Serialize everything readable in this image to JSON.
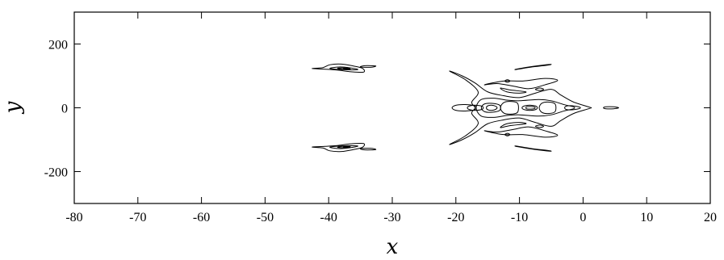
{
  "chart_data": {
    "type": "contour",
    "title": "",
    "xlabel": "x",
    "ylabel": "y",
    "xlim": [
      -80,
      20
    ],
    "ylim": [
      -300,
      300
    ],
    "x_ticks": [
      -80,
      -70,
      -60,
      -50,
      -40,
      -30,
      -20,
      -10,
      0,
      10,
      20
    ],
    "x_tick_labels": [
      "-80",
      "-70",
      "-60",
      "-50",
      "-40",
      "-30",
      "-20",
      "-10",
      "0",
      "10",
      "20"
    ],
    "y_ticks": [
      -200,
      0,
      200
    ],
    "y_tick_labels": [
      "-200",
      "0",
      "200"
    ],
    "grid": false,
    "line_color": "#000000",
    "features": [
      {
        "name": "upper-side-lobe",
        "contours": [
          [
            [
              -40.9,
              126
            ],
            [
              -39.8,
              135
            ],
            [
              -38.0,
              137
            ],
            [
              -36.1,
              131
            ],
            [
              -34.7,
              124
            ],
            [
              -34.5,
              112
            ],
            [
              -36.5,
              113
            ],
            [
              -38.5,
              118
            ],
            [
              -40.6,
              121
            ],
            [
              -42.6,
              123
            ]
          ],
          [
            [
              -39.8,
              124
            ],
            [
              -38.3,
              128
            ],
            [
              -36.6,
              125
            ],
            [
              -35.4,
              120
            ],
            [
              -37.0,
              119
            ],
            [
              -38.9,
              121
            ]
          ],
          [
            [
              -38.6,
              124
            ],
            [
              -37.4,
              125
            ],
            [
              -36.6,
              122
            ],
            [
              -37.7,
              121
            ]
          ],
          [
            [
              -37.6,
              123.5
            ],
            [
              -37.0,
              123.5
            ],
            [
              -37.0,
              122
            ],
            [
              -37.6,
              122
            ]
          ],
          [
            [
              -35.0,
              128
            ],
            [
              -34.3,
              132
            ],
            [
              -32.6,
              131
            ],
            [
              -33.4,
              127
            ]
          ]
        ]
      },
      {
        "name": "lower-side-lobe",
        "contours": [
          [
            [
              -40.9,
              -126
            ],
            [
              -39.8,
              -135
            ],
            [
              -38.0,
              -137
            ],
            [
              -36.1,
              -131
            ],
            [
              -34.7,
              -124
            ],
            [
              -34.5,
              -112
            ],
            [
              -36.5,
              -113
            ],
            [
              -38.5,
              -118
            ],
            [
              -40.6,
              -121
            ],
            [
              -42.6,
              -123
            ]
          ],
          [
            [
              -39.8,
              -124
            ],
            [
              -38.3,
              -128
            ],
            [
              -36.6,
              -125
            ],
            [
              -35.4,
              -120
            ],
            [
              -37.0,
              -119
            ],
            [
              -38.9,
              -121
            ]
          ],
          [
            [
              -38.6,
              -124
            ],
            [
              -37.4,
              -125
            ],
            [
              -36.6,
              -122
            ],
            [
              -37.7,
              -121
            ]
          ],
          [
            [
              -37.6,
              -123.5
            ],
            [
              -37.0,
              -123.5
            ],
            [
              -37.0,
              -122
            ],
            [
              -37.6,
              -122
            ]
          ],
          [
            [
              -35.0,
              -128
            ],
            [
              -34.3,
              -132
            ],
            [
              -32.6,
              -131
            ],
            [
              -33.4,
              -127
            ]
          ]
        ]
      },
      {
        "name": "central-wake",
        "contours": [
          [
            [
              -21.0,
              115
            ],
            [
              -19.0,
              100
            ],
            [
              -17.0,
              78
            ],
            [
              -15.0,
              50
            ],
            [
              -12.5,
              38
            ],
            [
              -10.0,
              32
            ],
            [
              -7.5,
              46
            ],
            [
              -5.0,
              58
            ],
            [
              -3.5,
              40
            ],
            [
              -1.5,
              18
            ],
            [
              1.0,
              2
            ],
            [
              1.0,
              -2
            ],
            [
              -1.5,
              -18
            ],
            [
              -3.5,
              -40
            ],
            [
              -5.0,
              -58
            ],
            [
              -7.5,
              -46
            ],
            [
              -10.0,
              -32
            ],
            [
              -12.5,
              -38
            ],
            [
              -15.0,
              -50
            ],
            [
              -17.0,
              -78
            ],
            [
              -19.0,
              -100
            ],
            [
              -21.0,
              -115
            ],
            [
              -18.5,
              -88
            ],
            [
              -16.5,
              -50
            ],
            [
              -17.5,
              -18
            ],
            [
              -17.0,
              0
            ],
            [
              -17.5,
              18
            ],
            [
              -16.5,
              50
            ],
            [
              -18.5,
              88
            ]
          ],
          [
            [
              -15.5,
              72
            ],
            [
              -13.5,
              76
            ],
            [
              -11.0,
              68
            ],
            [
              -8.5,
              60
            ],
            [
              -6.0,
              72
            ],
            [
              -4.0,
              86
            ],
            [
              -6.0,
              92
            ],
            [
              -9.5,
              84
            ],
            [
              -12.5,
              84
            ]
          ],
          [
            [
              -15.5,
              -72
            ],
            [
              -13.5,
              -76
            ],
            [
              -11.0,
              -68
            ],
            [
              -8.5,
              -60
            ],
            [
              -6.0,
              -72
            ],
            [
              -4.0,
              -86
            ],
            [
              -6.0,
              -92
            ],
            [
              -9.5,
              -84
            ],
            [
              -12.5,
              -84
            ]
          ],
          [
            [
              -13.0,
              62
            ],
            [
              -11.5,
              56
            ],
            [
              -9.0,
              50
            ],
            [
              -10.0,
              46
            ],
            [
              -12.0,
              50
            ]
          ],
          [
            [
              -13.0,
              -62
            ],
            [
              -11.5,
              -56
            ],
            [
              -9.0,
              -50
            ],
            [
              -10.0,
              -46
            ],
            [
              -12.0,
              -50
            ]
          ],
          [
            [
              -16.0,
              26
            ],
            [
              -14.0,
              30
            ],
            [
              -12.0,
              24
            ],
            [
              -10.0,
              22
            ],
            [
              -7.0,
              26
            ],
            [
              -5.0,
              22
            ],
            [
              -3.0,
              10
            ],
            [
              -1.5,
              3
            ],
            [
              -1.5,
              -3
            ],
            [
              -3.0,
              -10
            ],
            [
              -5.0,
              -22
            ],
            [
              -7.0,
              -26
            ],
            [
              -10.0,
              -22
            ],
            [
              -12.0,
              -24
            ],
            [
              -14.0,
              -30
            ],
            [
              -16.0,
              -26
            ],
            [
              -16.8,
              0
            ]
          ],
          [
            [
              -17.8,
              6
            ],
            [
              -16.8,
              8
            ],
            [
              -15.8,
              4
            ],
            [
              -15.8,
              -4
            ],
            [
              -16.8,
              -8
            ],
            [
              -17.8,
              -6
            ],
            [
              -18.2,
              0
            ]
          ],
          [
            [
              -15.5,
              12
            ],
            [
              -14.3,
              14
            ],
            [
              -13.1,
              8
            ],
            [
              -13.1,
              -8
            ],
            [
              -14.3,
              -14
            ],
            [
              -15.5,
              -12
            ],
            [
              -16.0,
              0
            ]
          ],
          [
            [
              -15.0,
              6
            ],
            [
              -14.3,
              8
            ],
            [
              -13.6,
              3
            ],
            [
              -13.6,
              -3
            ],
            [
              -14.3,
              -8
            ],
            [
              -15.0,
              -6
            ],
            [
              -15.2,
              0
            ]
          ],
          [
            [
              -12.5,
              16
            ],
            [
              -11.5,
              20
            ],
            [
              -10.3,
              14
            ],
            [
              -10.3,
              -14
            ],
            [
              -11.5,
              -20
            ],
            [
              -12.5,
              -16
            ],
            [
              -13.0,
              0
            ]
          ],
          [
            [
              -9.2,
              6
            ],
            [
              -8.2,
              8
            ],
            [
              -7.3,
              4
            ],
            [
              -7.3,
              -4
            ],
            [
              -8.2,
              -8
            ],
            [
              -9.2,
              -6
            ],
            [
              -9.6,
              0
            ]
          ],
          [
            [
              -8.9,
              3
            ],
            [
              -8.2,
              4
            ],
            [
              -7.6,
              2
            ],
            [
              -7.6,
              -2
            ],
            [
              -8.2,
              -4
            ],
            [
              -8.9,
              -3
            ]
          ],
          [
            [
              -6.5,
              14
            ],
            [
              -5.5,
              18
            ],
            [
              -4.4,
              12
            ],
            [
              -4.4,
              -12
            ],
            [
              -5.5,
              -18
            ],
            [
              -6.5,
              -14
            ],
            [
              -6.9,
              0
            ]
          ],
          [
            [
              -2.5,
              6
            ],
            [
              -1.2,
              5
            ],
            [
              -0.4,
              0
            ],
            [
              -1.2,
              -5
            ],
            [
              -2.5,
              -6
            ],
            [
              -2.9,
              0
            ]
          ],
          [
            [
              -20.0,
              8
            ],
            [
              -18.5,
              10
            ],
            [
              -17.0,
              6
            ],
            [
              -17.0,
              -6
            ],
            [
              -18.5,
              -10
            ],
            [
              -20.0,
              -8
            ],
            [
              -20.6,
              0
            ]
          ],
          [
            [
              3.6,
              3
            ],
            [
              4.8,
              3
            ],
            [
              5.6,
              0
            ],
            [
              4.8,
              -3
            ],
            [
              3.6,
              -3
            ],
            [
              3.2,
              0
            ]
          ]
        ]
      },
      {
        "name": "trailing-streaks",
        "contours": [
          [
            [
              -10.5,
              120
            ],
            [
              -8.0,
              128
            ],
            [
              -5.5,
              134
            ],
            [
              -5.2,
              136
            ],
            [
              -7.8,
              130
            ],
            [
              -10.3,
              122
            ]
          ],
          [
            [
              -10.5,
              -120
            ],
            [
              -8.0,
              -128
            ],
            [
              -5.5,
              -134
            ],
            [
              -5.2,
              -136
            ],
            [
              -7.8,
              -130
            ],
            [
              -10.3,
              -122
            ]
          ],
          [
            [
              -12.3,
              84
            ],
            [
              -11.9,
              88
            ],
            [
              -11.5,
              84
            ],
            [
              -11.9,
              80
            ]
          ],
          [
            [
              -12.3,
              -84
            ],
            [
              -11.9,
              -88
            ],
            [
              -11.5,
              -84
            ],
            [
              -11.9,
              -80
            ]
          ],
          [
            [
              -7.5,
              58
            ],
            [
              -6.8,
              62
            ],
            [
              -6.2,
              58
            ],
            [
              -6.8,
              54
            ]
          ],
          [
            [
              -7.5,
              -58
            ],
            [
              -6.8,
              -62
            ],
            [
              -6.2,
              -58
            ],
            [
              -6.8,
              -54
            ]
          ]
        ]
      }
    ]
  }
}
